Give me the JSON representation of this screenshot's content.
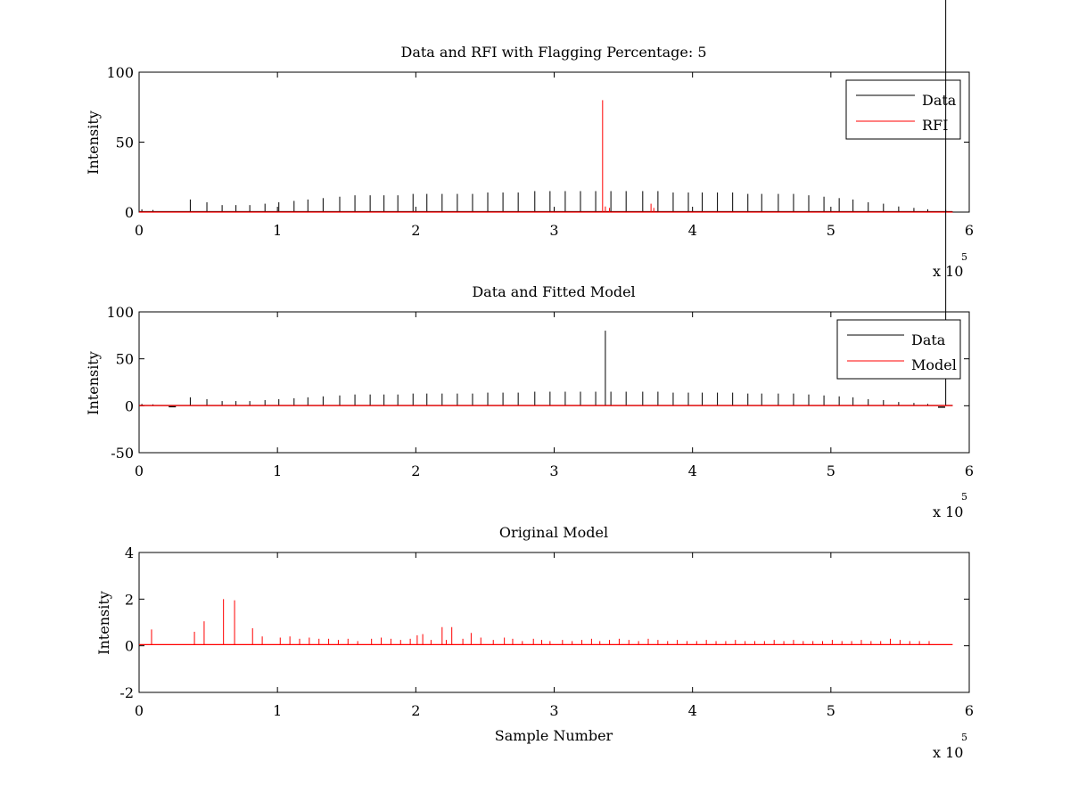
{
  "chart_data": [
    {
      "type": "line",
      "title": "Data and RFI with Flagging Percentage: 5",
      "xlabel": "",
      "ylabel": "Intensity",
      "xlim": [
        0,
        600000
      ],
      "ylim": [
        0,
        100
      ],
      "xticks": [
        "0",
        "1",
        "2",
        "3",
        "4",
        "5",
        "6"
      ],
      "yticks": [
        "0",
        "50",
        "100"
      ],
      "x_multiplier": {
        "base": "x 10",
        "exponent": "5"
      },
      "legend": {
        "position": "top-right",
        "entries": [
          "Data",
          "RFI"
        ]
      },
      "colors": {
        "Data": "#000000",
        "RFI": "#ff0000"
      },
      "series": [
        {
          "name": "Data",
          "baseline": 0.3,
          "spikes_x": [
            2000,
            10000,
            37000,
            49000,
            60000,
            70000,
            80000,
            91000,
            101000,
            112000,
            122000,
            133000,
            145000,
            156000,
            167000,
            177000,
            187000,
            198000,
            208000,
            219000,
            230000,
            241000,
            252000,
            263000,
            274000,
            286000,
            297000,
            308000,
            319000,
            330000,
            341000,
            352000,
            364000,
            375000,
            386000,
            397000,
            407000,
            418000,
            429000,
            440000,
            450000,
            462000,
            473000,
            484000,
            495000,
            506000,
            516000,
            527000,
            538000,
            549000,
            560000,
            570000,
            583000
          ],
          "spikes_y": [
            2,
            1.5,
            9,
            7,
            5,
            5,
            5,
            6,
            7,
            8,
            9,
            10,
            11,
            12,
            12,
            12,
            12,
            13,
            13,
            13,
            13,
            13,
            14,
            14,
            14,
            15,
            15,
            15,
            15,
            15,
            15,
            15,
            15,
            15,
            14,
            14,
            14,
            14,
            14,
            13,
            13,
            13,
            13,
            12,
            11,
            10,
            9,
            7,
            6,
            4,
            3,
            2,
            1.5
          ]
        },
        {
          "name": "RFI",
          "baseline": 0,
          "spikes_x": [
            335000,
            337000,
            340000,
            370000,
            372000
          ],
          "spikes_y": [
            80,
            4,
            3,
            6,
            3
          ]
        }
      ]
    },
    {
      "type": "line",
      "title": "Data and Fitted Model",
      "xlabel": "",
      "ylabel": "Intensity",
      "xlim": [
        0,
        600000
      ],
      "ylim": [
        -50,
        100
      ],
      "xticks": [
        "0",
        "1",
        "2",
        "3",
        "4",
        "5",
        "6"
      ],
      "yticks": [
        "-50",
        "0",
        "50",
        "100"
      ],
      "x_multiplier": {
        "base": "x 10",
        "exponent": "5"
      },
      "legend": {
        "position": "top-right",
        "entries": [
          "Data",
          "Model"
        ]
      },
      "colors": {
        "Data": "#000000",
        "Model": "#ff0000"
      },
      "series": [
        {
          "name": "Data",
          "baseline": 0.3,
          "spikes_x": [
            2000,
            10000,
            37000,
            49000,
            60000,
            70000,
            80000,
            91000,
            101000,
            112000,
            122000,
            133000,
            145000,
            156000,
            167000,
            177000,
            187000,
            198000,
            208000,
            219000,
            230000,
            241000,
            252000,
            263000,
            274000,
            286000,
            297000,
            308000,
            319000,
            330000,
            337000,
            341000,
            352000,
            364000,
            375000,
            386000,
            397000,
            407000,
            418000,
            429000,
            440000,
            450000,
            462000,
            473000,
            484000,
            495000,
            506000,
            516000,
            527000,
            538000,
            549000,
            560000,
            570000,
            583000
          ],
          "spikes_y": [
            2,
            1.5,
            9,
            7,
            5,
            5,
            5,
            6,
            7,
            8,
            9,
            10,
            11,
            12,
            12,
            12,
            12,
            13,
            13,
            13,
            13,
            13,
            14,
            14,
            14,
            15,
            15,
            15,
            15,
            15,
            80,
            15,
            15,
            15,
            15,
            14,
            14,
            14,
            14,
            14,
            13,
            13,
            13,
            13,
            12,
            11,
            10,
            9,
            7,
            6,
            4,
            3,
            2
          ],
          "dips_x": [
            24000,
            580000
          ],
          "dips_y": [
            -1,
            -1.5
          ]
        },
        {
          "name": "Model",
          "baseline": 0.2,
          "spikes_x": [],
          "spikes_y": []
        }
      ]
    },
    {
      "type": "line",
      "title": "Original Model",
      "xlabel": "Sample Number",
      "ylabel": "Intensity",
      "xlim": [
        0,
        600000
      ],
      "ylim": [
        -2,
        4
      ],
      "xticks": [
        "0",
        "1",
        "2",
        "3",
        "4",
        "5",
        "6"
      ],
      "yticks": [
        "-2",
        "0",
        "2",
        "4"
      ],
      "x_multiplier": {
        "base": "x 10",
        "exponent": "5"
      },
      "colors": {
        "Model": "#ff0000"
      },
      "series": [
        {
          "name": "",
          "baseline": 0.05,
          "spikes_x": [
            9000,
            40000,
            47000,
            61000,
            69000,
            82000,
            89000,
            102000,
            109000,
            116000,
            123000,
            130000,
            137000,
            144000,
            151000,
            158000,
            168000,
            175000,
            182000,
            189000,
            196000,
            201000,
            205000,
            211000,
            219000,
            222000,
            226000,
            234000,
            240000,
            247000,
            256000,
            264000,
            270000,
            277000,
            285000,
            291000,
            297000,
            306000,
            313000,
            320000,
            327000,
            333000,
            340000,
            347000,
            354000,
            361000,
            368000,
            375000,
            382000,
            389000,
            396000,
            403000,
            410000,
            417000,
            424000,
            431000,
            438000,
            445000,
            452000,
            459000,
            466000,
            473000,
            480000,
            487000,
            494000,
            501000,
            508000,
            515000,
            522000,
            529000,
            536000,
            543000,
            550000,
            557000,
            564000,
            571000
          ],
          "spikes_y": [
            0.7,
            0.6,
            1.05,
            2.0,
            1.95,
            0.75,
            0.4,
            0.35,
            0.4,
            0.3,
            0.35,
            0.3,
            0.3,
            0.25,
            0.3,
            0.2,
            0.3,
            0.35,
            0.3,
            0.25,
            0.3,
            0.45,
            0.5,
            0.25,
            0.8,
            0.25,
            0.8,
            0.3,
            0.55,
            0.35,
            0.25,
            0.35,
            0.3,
            0.2,
            0.3,
            0.25,
            0.2,
            0.25,
            0.2,
            0.25,
            0.3,
            0.2,
            0.25,
            0.3,
            0.25,
            0.2,
            0.3,
            0.25,
            0.2,
            0.25,
            0.2,
            0.2,
            0.25,
            0.2,
            0.2,
            0.25,
            0.2,
            0.2,
            0.2,
            0.25,
            0.2,
            0.25,
            0.2,
            0.2,
            0.2,
            0.25,
            0.2,
            0.2,
            0.25,
            0.2,
            0.2,
            0.3,
            0.25,
            0.2,
            0.2,
            0.2
          ]
        }
      ]
    }
  ]
}
